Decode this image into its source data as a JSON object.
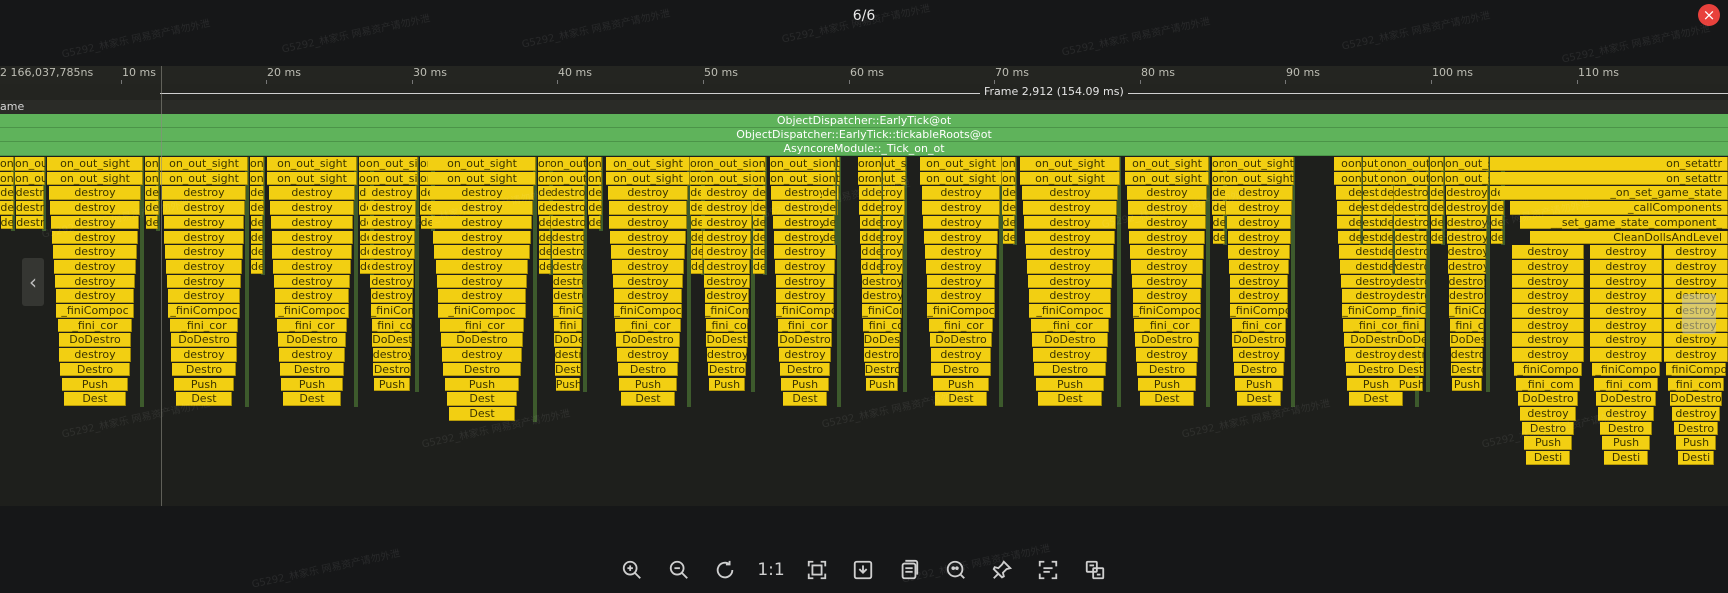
{
  "viewer": {
    "counter": "6/6",
    "close_label": "×"
  },
  "ruler": {
    "ticks": [
      "2 166,037,785ns",
      "10 ms",
      "20 ms",
      "30 ms",
      "40 ms",
      "50 ms",
      "60 ms",
      "70 ms",
      "80 ms",
      "90 ms",
      "100 ms",
      "110 ms"
    ]
  },
  "frame": {
    "label": "Frame 2,912 (154.09 ms)"
  },
  "thread": {
    "label": "ame"
  },
  "flame": {
    "top_bars": [
      "ObjectDispatcher::EarlyTick@ot",
      "ObjectDispatcher::EarlyTick::tickableRoots@ot",
      "AsyncoreModule::_Tick_on_ot"
    ],
    "stack_labels": [
      "on_out_sight",
      "on_out_sight",
      "destroy",
      "destroy",
      "destroy",
      "destroy",
      "destroy",
      "destroy",
      "destroy",
      "destroy",
      "_finiCompoc",
      "_fini_cor",
      "DoDestro",
      "destroy",
      "Destro",
      "Push",
      "Dest"
    ],
    "right_stack_labels": [
      "on_setattr",
      "on_setattr",
      "_on_set_game_state",
      "_callComponents",
      "__set_game_state_component_",
      "CleanDollsAndLevel"
    ],
    "right_sub_labels": [
      "destroy",
      "destroy",
      "destroy",
      "destroy",
      "destroy",
      "destroy",
      "destroy",
      "destroy",
      "_finiCompo",
      "_fini_com",
      "DoDestro",
      "destroy",
      "Destro",
      "Push",
      "Desti"
    ]
  },
  "toolbar": {
    "one_to_one_label": "1:1",
    "icons": [
      "zoom-in-icon",
      "zoom-out-icon",
      "rotate-icon",
      "one-to-one",
      "fit-screen-icon",
      "download-icon",
      "copy-icon",
      "search-image-icon",
      "pin-icon",
      "text-extract-icon",
      "translate-icon"
    ]
  },
  "watermarks": [
    "G5292_林家乐 网易资产请勿外泄"
  ],
  "colors": {
    "background": "#161718",
    "flame_yellow": "#f2cf12",
    "flame_green": "#5fb35b",
    "close_red": "#e8413c"
  }
}
